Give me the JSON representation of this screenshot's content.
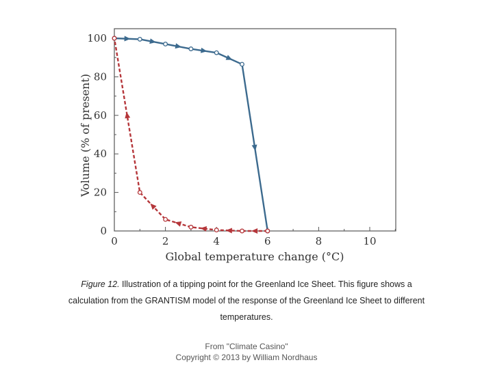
{
  "chart_data": {
    "type": "line",
    "xlabel": "Global temperature change (°C)",
    "ylabel": "Volume (% of present)",
    "xlim": [
      0,
      11
    ],
    "ylim": [
      0,
      100
    ],
    "x_ticks": [
      0,
      2,
      4,
      6,
      8,
      10
    ],
    "y_ticks": [
      0,
      20,
      40,
      60,
      80,
      100
    ],
    "legend": "none",
    "grid": false,
    "series": [
      {
        "color": "#3c6a8e",
        "line_style": "solid",
        "x": [
          0,
          1,
          2,
          3,
          4,
          5,
          6
        ],
        "y": [
          100,
          99.5,
          97,
          94.5,
          92.5,
          86.5,
          0
        ]
      },
      {
        "color": "#b5363a",
        "line_style": "dashed",
        "x": [
          6,
          5,
          4,
          3,
          2,
          1,
          0
        ],
        "y": [
          0,
          0,
          0.5,
          2,
          6,
          20,
          100
        ]
      }
    ]
  },
  "caption": {
    "figure_label": "Figure 12.",
    "line1_text": " Illustration of a tipping point for the Greenland Ice Sheet. This figure shows a",
    "line2_text": "calculation from the GRANTISM model of the response of the Greenland Ice Sheet to different",
    "line3_text": "temperatures."
  },
  "credit": {
    "line1": "From \"Climate Casino\"",
    "line2": "Copyright © 2013 by William Nordhaus"
  }
}
